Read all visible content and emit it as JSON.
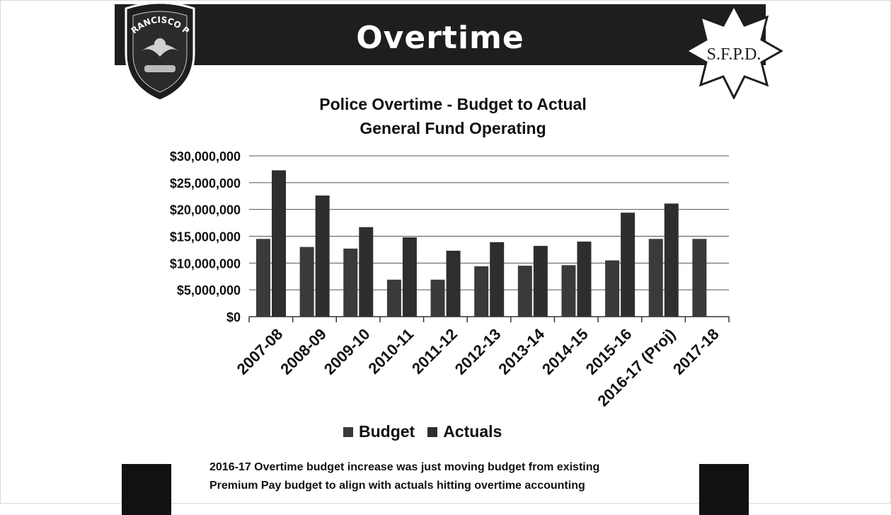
{
  "slide": {
    "title": "Overtime",
    "left_logo_text": "SAN FRANCISCO POLICE",
    "right_logo_text": "S.F.P.D.",
    "note_line1": "2016-17 Overtime budget increase was just moving budget from existing",
    "note_line2": "Premium Pay budget to align with actuals hitting overtime accounting"
  },
  "colors": {
    "banner": "#1e1e1e",
    "budget": "#3a3a3a",
    "actuals": "#2e2e2e",
    "axis": "#333333"
  },
  "chart_data": {
    "type": "bar",
    "title_line1": "Police Overtime - Budget to Actual",
    "title_line2": "General Fund Operating",
    "categories": [
      "2007-08",
      "2008-09",
      "2009-10",
      "2010-11",
      "2011-12",
      "2012-13",
      "2013-14",
      "2014-15",
      "2015-16",
      "2016-17 (Proj)",
      "2017-18"
    ],
    "series": [
      {
        "name": "Budget",
        "values": [
          14500000,
          13000000,
          12700000,
          6900000,
          6900000,
          9400000,
          9500000,
          9600000,
          10500000,
          14500000,
          14500000
        ]
      },
      {
        "name": "Actuals",
        "values": [
          27300000,
          22600000,
          16700000,
          14800000,
          12300000,
          13900000,
          13200000,
          14000000,
          19400000,
          21100000,
          null
        ]
      }
    ],
    "y_ticks": [
      "$0",
      "$5,000,000",
      "$10,000,000",
      "$15,000,000",
      "$20,000,000",
      "$25,000,000",
      "$30,000,000"
    ],
    "ylim": [
      0,
      30000000
    ],
    "grid": true,
    "legend_position": "bottom"
  }
}
